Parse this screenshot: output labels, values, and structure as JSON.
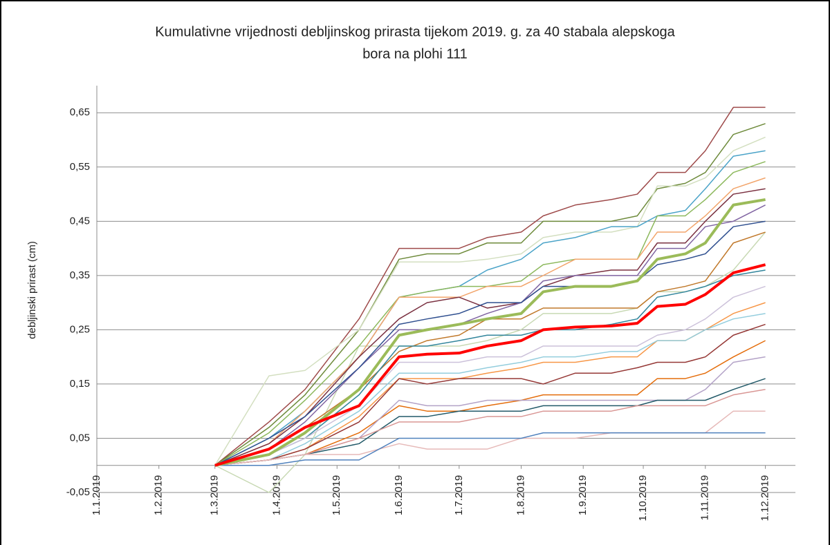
{
  "chart_data": {
    "type": "line",
    "title": [
      "Kumulativne vrijednosti debljinskog prirasta tijekom 2019. g. za 40 stabala alepskoga",
      "bora na plohi 111"
    ],
    "y_label": "debljinski prirast (cm)",
    "x": [
      "2019-03-01",
      "2019-03-28",
      "2019-04-15",
      "2019-05-12",
      "2019-06-01",
      "2019-06-15",
      "2019-07-01",
      "2019-07-15",
      "2019-08-01",
      "2019-08-12",
      "2019-08-28",
      "2019-09-15",
      "2019-09-28",
      "2019-10-08",
      "2019-10-22",
      "2019-11-01",
      "2019-11-15",
      "2019-12-01"
    ],
    "xlim": [
      "2019-01-01",
      "2019-12-16"
    ],
    "xticks": [
      {
        "value": "2019-01-01",
        "label": "1.1.2019"
      },
      {
        "value": "2019-02-01",
        "label": "1.2.2019"
      },
      {
        "value": "2019-03-01",
        "label": "1.3.2019"
      },
      {
        "value": "2019-04-01",
        "label": "1.4.2019"
      },
      {
        "value": "2019-05-01",
        "label": "1.5.2019"
      },
      {
        "value": "2019-06-01",
        "label": "1.6.2019"
      },
      {
        "value": "2019-07-01",
        "label": "1.7.2019"
      },
      {
        "value": "2019-08-01",
        "label": "1.8.2019"
      },
      {
        "value": "2019-09-01",
        "label": "1.9.2019"
      },
      {
        "value": "2019-10-01",
        "label": "1.10.2019"
      },
      {
        "value": "2019-11-01",
        "label": "1.11.2019"
      },
      {
        "value": "2019-12-01",
        "label": "1.12.2019"
      }
    ],
    "ylim": [
      -0.05,
      0.7
    ],
    "yticks": [
      {
        "value": -0.05,
        "label": "-0,05"
      },
      {
        "value": 0.05,
        "label": "0,05"
      },
      {
        "value": 0.15,
        "label": "0,15"
      },
      {
        "value": 0.25,
        "label": "0,25"
      },
      {
        "value": 0.35,
        "label": "0,35"
      },
      {
        "value": 0.45,
        "label": "0,45"
      },
      {
        "value": 0.55,
        "label": "0,55"
      },
      {
        "value": 0.65,
        "label": "0,65"
      }
    ],
    "grid": true,
    "series": [
      {
        "color": "#c8d9b4",
        "width": 1.5,
        "values": [
          0,
          -0.05,
          0.02,
          0.22,
          0.22,
          0.22,
          0.22,
          0.23,
          0.25,
          0.28,
          0.28,
          0.28,
          0.29,
          0.32,
          0.32,
          0.33,
          0.36,
          0.43
        ]
      },
      {
        "color": "#9e4a4a",
        "width": 1.5,
        "values": [
          0,
          0.08,
          0.14,
          0.27,
          0.4,
          0.4,
          0.4,
          0.42,
          0.43,
          0.46,
          0.48,
          0.49,
          0.5,
          0.54,
          0.54,
          0.58,
          0.66,
          0.66
        ]
      },
      {
        "color": "#6d8a3a",
        "width": 1.5,
        "values": [
          0,
          0.07,
          0.13,
          0.25,
          0.38,
          0.39,
          0.39,
          0.41,
          0.41,
          0.45,
          0.45,
          0.45,
          0.46,
          0.51,
          0.52,
          0.54,
          0.61,
          0.63
        ]
      },
      {
        "color": "#d3dfc0",
        "width": 1.5,
        "values": [
          0,
          0.165,
          0.175,
          0.25,
          0.375,
          0.375,
          0.375,
          0.38,
          0.39,
          0.42,
          0.43,
          0.43,
          0.44,
          0.515,
          0.515,
          0.53,
          0.58,
          0.605
        ]
      },
      {
        "color": "#4aa3c8",
        "width": 1.5,
        "values": [
          0,
          0.05,
          0.1,
          0.2,
          0.31,
          0.32,
          0.33,
          0.36,
          0.38,
          0.41,
          0.42,
          0.44,
          0.44,
          0.46,
          0.47,
          0.51,
          0.57,
          0.58
        ]
      },
      {
        "color": "#8cb85c",
        "width": 1.5,
        "values": [
          0,
          0.06,
          0.12,
          0.22,
          0.31,
          0.32,
          0.33,
          0.33,
          0.34,
          0.37,
          0.38,
          0.38,
          0.38,
          0.46,
          0.46,
          0.49,
          0.54,
          0.56
        ]
      },
      {
        "color": "#f2a46a",
        "width": 1.5,
        "values": [
          0,
          0.04,
          0.1,
          0.2,
          0.31,
          0.31,
          0.31,
          0.33,
          0.33,
          0.35,
          0.38,
          0.38,
          0.38,
          0.43,
          0.43,
          0.46,
          0.51,
          0.53
        ]
      },
      {
        "color": "#7a3040",
        "width": 1.5,
        "values": [
          0,
          0.04,
          0.09,
          0.2,
          0.27,
          0.3,
          0.31,
          0.29,
          0.3,
          0.33,
          0.35,
          0.36,
          0.36,
          0.41,
          0.41,
          0.45,
          0.5,
          0.51
        ]
      },
      {
        "color": "#8064a2",
        "width": 1.5,
        "values": [
          0,
          0.03,
          0.08,
          0.18,
          0.25,
          0.25,
          0.26,
          0.28,
          0.3,
          0.34,
          0.35,
          0.35,
          0.35,
          0.4,
          0.4,
          0.44,
          0.45,
          0.48
        ]
      },
      {
        "color": "#2f4f8f",
        "width": 1.5,
        "values": [
          0,
          0.05,
          0.09,
          0.18,
          0.26,
          0.27,
          0.28,
          0.3,
          0.3,
          0.33,
          0.33,
          0.33,
          0.34,
          0.37,
          0.38,
          0.39,
          0.44,
          0.45
        ]
      },
      {
        "color": "#c0782a",
        "width": 1.5,
        "values": [
          0,
          0.03,
          0.07,
          0.14,
          0.21,
          0.23,
          0.24,
          0.27,
          0.27,
          0.29,
          0.29,
          0.29,
          0.29,
          0.32,
          0.33,
          0.34,
          0.41,
          0.43
        ]
      },
      {
        "color": "#31859c",
        "width": 1.5,
        "values": [
          0,
          0.02,
          0.05,
          0.13,
          0.22,
          0.22,
          0.23,
          0.24,
          0.24,
          0.25,
          0.25,
          0.26,
          0.27,
          0.31,
          0.32,
          0.33,
          0.35,
          0.36
        ]
      },
      {
        "color": "#ccc1da",
        "width": 1.5,
        "values": [
          0,
          0.02,
          0.05,
          0.11,
          0.19,
          0.19,
          0.19,
          0.2,
          0.2,
          0.22,
          0.22,
          0.22,
          0.22,
          0.24,
          0.25,
          0.27,
          0.31,
          0.33
        ]
      },
      {
        "color": "#f79646",
        "width": 1.5,
        "values": [
          0,
          0.01,
          0.03,
          0.09,
          0.16,
          0.16,
          0.16,
          0.17,
          0.18,
          0.19,
          0.19,
          0.2,
          0.2,
          0.23,
          0.23,
          0.25,
          0.28,
          0.3
        ]
      },
      {
        "color": "#93cddd",
        "width": 1.5,
        "values": [
          0,
          0.01,
          0.04,
          0.1,
          0.17,
          0.17,
          0.17,
          0.18,
          0.19,
          0.2,
          0.2,
          0.21,
          0.21,
          0.23,
          0.23,
          0.25,
          0.27,
          0.28
        ]
      },
      {
        "color": "#953735",
        "width": 1.5,
        "values": [
          0,
          0.01,
          0.03,
          0.08,
          0.16,
          0.15,
          0.16,
          0.16,
          0.16,
          0.15,
          0.17,
          0.17,
          0.18,
          0.19,
          0.19,
          0.2,
          0.24,
          0.26
        ]
      },
      {
        "color": "#e46c0a",
        "width": 1.5,
        "values": [
          0,
          0.01,
          0.02,
          0.06,
          0.11,
          0.1,
          0.1,
          0.11,
          0.12,
          0.13,
          0.13,
          0.13,
          0.13,
          0.16,
          0.16,
          0.17,
          0.2,
          0.23
        ]
      },
      {
        "color": "#b3a2c7",
        "width": 1.5,
        "values": [
          0,
          0.01,
          0.02,
          0.05,
          0.12,
          0.11,
          0.11,
          0.12,
          0.12,
          0.12,
          0.12,
          0.12,
          0.12,
          0.12,
          0.12,
          0.14,
          0.19,
          0.2
        ]
      },
      {
        "color": "#215968",
        "width": 1.5,
        "values": [
          0,
          0.01,
          0.02,
          0.04,
          0.09,
          0.09,
          0.1,
          0.1,
          0.1,
          0.11,
          0.11,
          0.11,
          0.11,
          0.12,
          0.12,
          0.12,
          0.14,
          0.16
        ]
      },
      {
        "color": "#d99694",
        "width": 1.5,
        "values": [
          0,
          0.01,
          0.02,
          0.05,
          0.08,
          0.08,
          0.08,
          0.09,
          0.09,
          0.1,
          0.1,
          0.1,
          0.11,
          0.11,
          0.11,
          0.11,
          0.13,
          0.14
        ]
      },
      {
        "color": "#e6b9b8",
        "width": 1.5,
        "values": [
          0,
          0.01,
          0.02,
          0.02,
          0.04,
          0.03,
          0.03,
          0.03,
          0.05,
          0.05,
          0.05,
          0.06,
          0.06,
          0.06,
          0.06,
          0.06,
          0.1,
          0.1
        ]
      },
      {
        "color": "#4f81bd",
        "width": 1.5,
        "values": [
          0,
          0,
          0.01,
          0.01,
          0.05,
          0.05,
          0.05,
          0.05,
          0.05,
          0.06,
          0.06,
          0.06,
          0.06,
          0.06,
          0.06,
          0.06,
          0.06,
          0.06
        ]
      },
      {
        "color": "#9bbb59",
        "width": 4,
        "values": [
          0,
          0.02,
          0.06,
          0.14,
          0.24,
          0.25,
          0.26,
          0.27,
          0.28,
          0.32,
          0.33,
          0.33,
          0.34,
          0.38,
          0.39,
          0.41,
          0.48,
          0.49
        ]
      },
      {
        "color": "#ff0000",
        "width": 4,
        "values": [
          0,
          0.03,
          0.07,
          0.11,
          0.2,
          0.205,
          0.207,
          0.22,
          0.23,
          0.25,
          0.255,
          0.257,
          0.262,
          0.293,
          0.297,
          0.315,
          0.355,
          0.37
        ]
      }
    ]
  }
}
